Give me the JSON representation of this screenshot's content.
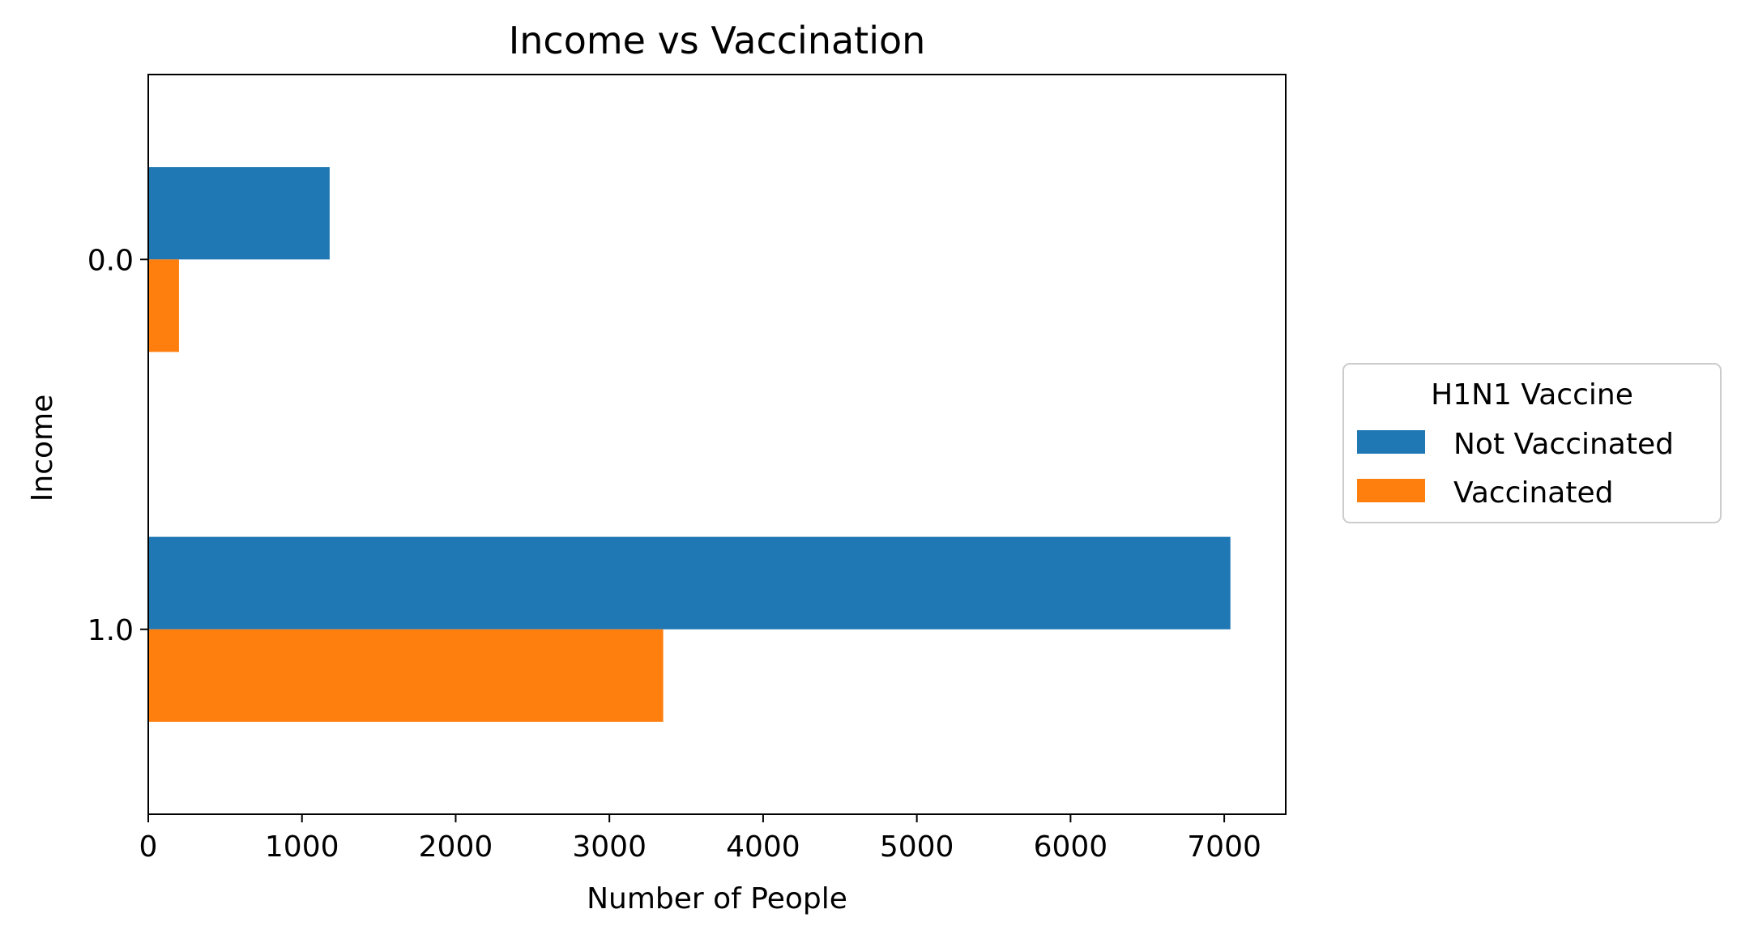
{
  "chart_data": {
    "type": "bar",
    "orientation": "horizontal",
    "title": "Income vs Vaccination",
    "xlabel": "Number of People",
    "ylabel": "Income",
    "categories": [
      "0.0",
      "1.0"
    ],
    "series": [
      {
        "name": "Not Vaccinated",
        "color": "#1f77b4",
        "values": [
          1180,
          7040
        ]
      },
      {
        "name": "Vaccinated",
        "color": "#ff7f0e",
        "values": [
          200,
          3350
        ]
      }
    ],
    "xlim": [
      0,
      7400
    ],
    "xticks": [
      0,
      1000,
      2000,
      3000,
      4000,
      5000,
      6000,
      7000
    ],
    "xtick_labels": [
      "0",
      "1000",
      "2000",
      "3000",
      "4000",
      "5000",
      "6000",
      "7000"
    ],
    "grid": false,
    "legend": {
      "title": "H1N1 Vaccine",
      "placement": "right, outside the plot area",
      "entries": [
        "Not Vaccinated",
        "Vaccinated"
      ]
    }
  }
}
